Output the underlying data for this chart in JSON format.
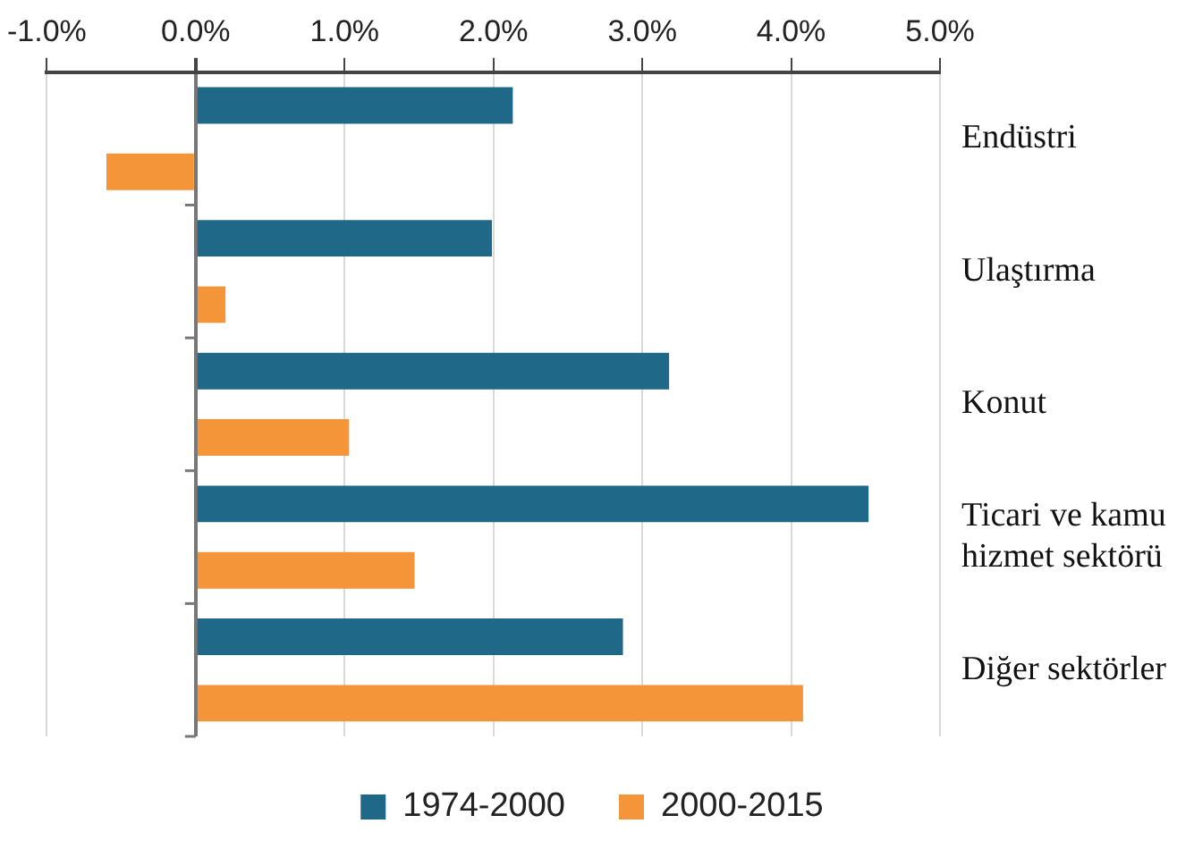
{
  "chart_data": {
    "type": "bar",
    "orientation": "horizontal",
    "categories": [
      "Endüstri",
      "Ulaştırma",
      "Konut",
      "Ticari ve kamu hizmet sektörü",
      "Diğer sektörler"
    ],
    "series": [
      {
        "name": "1974-2000",
        "color": "#1f6887",
        "values": [
          2.13,
          1.99,
          3.18,
          4.52,
          2.87
        ]
      },
      {
        "name": "2000-2015",
        "color": "#f5953a",
        "values": [
          -0.6,
          0.2,
          1.03,
          1.47,
          4.08
        ]
      }
    ],
    "xlim": [
      -1,
      5
    ],
    "xticks": [
      {
        "value": -1,
        "label": "-1.0%"
      },
      {
        "value": 0,
        "label": "0.0%"
      },
      {
        "value": 1,
        "label": "1.0%"
      },
      {
        "value": 2,
        "label": "2.0%"
      },
      {
        "value": 3,
        "label": "3.0%"
      },
      {
        "value": 4,
        "label": "4.0%"
      },
      {
        "value": 5,
        "label": "5.0%"
      }
    ],
    "grid": "x",
    "legend": "bottom"
  }
}
